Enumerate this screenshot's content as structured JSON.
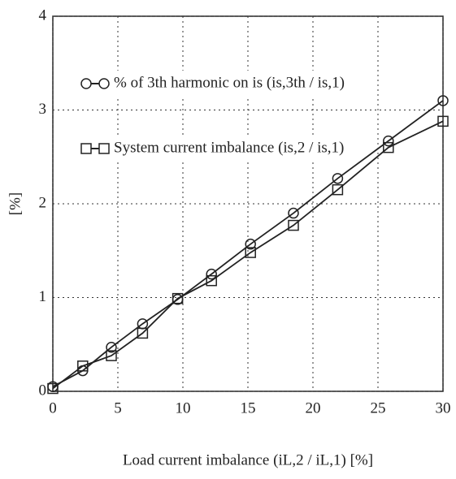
{
  "chart_data": {
    "type": "line",
    "x_label": "Load current imbalance (iL,2 / iL,1) [%]",
    "y_label": "[%]",
    "x": [
      0,
      2.3,
      4.5,
      6.9,
      9.6,
      12.2,
      15.2,
      18.5,
      21.9,
      25.8,
      30
    ],
    "series": [
      {
        "name": "% of 3th harmonic on is (is,3th / is,1)",
        "color": "#222222",
        "marker": "circle",
        "values": [
          0.05,
          0.22,
          0.47,
          0.72,
          0.98,
          1.25,
          1.57,
          1.9,
          2.27,
          2.67,
          3.1
        ]
      },
      {
        "name": "System current imbalance (is,2 / is,1)",
        "color": "#222222",
        "marker": "square",
        "values": [
          0.03,
          0.27,
          0.38,
          0.62,
          0.99,
          1.18,
          1.48,
          1.77,
          2.15,
          2.6,
          2.88
        ]
      }
    ],
    "xlim": [
      0,
      30
    ],
    "xticks": [
      0,
      5,
      10,
      15,
      20,
      25,
      30
    ],
    "ylim": [
      0,
      4
    ],
    "yticks": [
      0,
      1,
      2,
      3,
      4
    ],
    "grid": true
  }
}
